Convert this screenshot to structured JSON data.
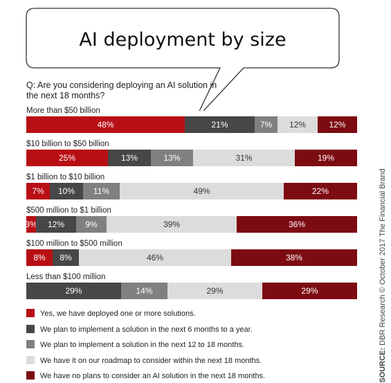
{
  "title": "AI deployment by size",
  "question": "Q: Are you considering deploying an AI solution in the next 18 months?",
  "source_label": "SOURCE:",
  "source_text": "DBR Research © October 2017 The Financial Brand",
  "colors": {
    "deployed": "#b80f14",
    "six_to_twelve": "#474747",
    "twelve_to_eighteen": "#808080",
    "roadmap": "#dcdcdc",
    "no_plans": "#7d0b12"
  },
  "chart_data": {
    "type": "bar",
    "orientation": "horizontal",
    "stacked": true,
    "categories": [
      "More than $50 billion",
      "$10 billion to $50 billion",
      "$1 billion to $10 billion",
      "$500 million to $1 billion",
      "$100 million to $500 million",
      "Less than $100 million"
    ],
    "series": [
      {
        "name": "Yes, we have deployed one or more solutions.",
        "color": "#b80f14",
        "values": [
          48,
          25,
          7,
          3,
          8,
          0
        ]
      },
      {
        "name": "We plan to implement a solution in the next 6 months to a year.",
        "color": "#474747",
        "values": [
          21,
          13,
          10,
          12,
          8,
          29
        ]
      },
      {
        "name": "We plan to implement a solution in the next 12 to 18 months.",
        "color": "#808080",
        "values": [
          7,
          13,
          11,
          9,
          0,
          14
        ]
      },
      {
        "name": "We have it on our roadmap to consider within the next 18 months.",
        "color": "#dcdcdc",
        "values": [
          12,
          31,
          49,
          39,
          46,
          29
        ]
      },
      {
        "name": "We have no plans to consider an AI solution in the next 18 months.",
        "color": "#7d0b12",
        "values": [
          12,
          19,
          22,
          36,
          38,
          29
        ]
      }
    ],
    "unit": "%",
    "legend_position": "bottom"
  }
}
